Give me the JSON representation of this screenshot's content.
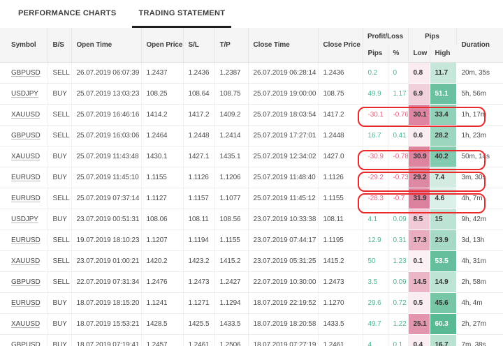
{
  "tabs": [
    {
      "id": "performance-charts",
      "label": "PERFORMANCE CHARTS",
      "active": false
    },
    {
      "id": "trading-statement",
      "label": "TRADING STATEMENT",
      "active": true
    }
  ],
  "table": {
    "columns": {
      "symbol": "Symbol",
      "side": "B/S",
      "open_time": "Open Time",
      "open_price": "Open Price",
      "sl": "S/L",
      "tp": "T/P",
      "close_time": "Close Time",
      "close_price": "Close Price",
      "duration": "Duration"
    },
    "group_headers": {
      "profit_loss": "Profit/Loss",
      "pips": "Pips"
    },
    "sub_headers": {
      "pips": "Pips",
      "pct": "%",
      "low": "Low",
      "high": "High"
    },
    "colors": {
      "profit_text": "#4bb795",
      "loss_text": "#e2647f",
      "annotation": "#ea2a2a",
      "header_bg": "#f5f5f5",
      "active_tab_underline": "#1f1f1f"
    },
    "heatmap": {
      "low_base": "#d0557a",
      "high_base": "#2fa878",
      "low_max": 31.9,
      "high_max": 60.3
    },
    "rows": [
      {
        "symbol": "GBPUSD",
        "side": "SELL",
        "open_time": "26.07.2019 06:07:39",
        "open_price": "1.2437",
        "sl": "1.2436",
        "tp": "1.2387",
        "close_time": "26.07.2019 06:28:14",
        "close_price": "1.2436",
        "pl_pips": "0.2",
        "pl_pct": "0",
        "low": "0.8",
        "high": "11.7",
        "duration": "20m, 35s",
        "annotated": false
      },
      {
        "symbol": "USDJPY",
        "side": "BUY",
        "open_time": "25.07.2019 13:03:23",
        "open_price": "108.25",
        "sl": "108.64",
        "tp": "108.75",
        "close_time": "25.07.2019 19:00:00",
        "close_price": "108.75",
        "pl_pips": "49.9",
        "pl_pct": "1.17",
        "low": "6.9",
        "high": "51.1",
        "duration": "5h, 56m",
        "annotated": false
      },
      {
        "symbol": "XAUUSD",
        "side": "SELL",
        "open_time": "25.07.2019 16:46:16",
        "open_price": "1414.2",
        "sl": "1417.2",
        "tp": "1409.2",
        "close_time": "25.07.2019 18:03:54",
        "close_price": "1417.2",
        "pl_pips": "-30.1",
        "pl_pct": "-0.76",
        "low": "30.1",
        "high": "33.4",
        "duration": "1h, 17m",
        "annotated": true
      },
      {
        "symbol": "GBPUSD",
        "side": "SELL",
        "open_time": "25.07.2019 16:03:06",
        "open_price": "1.2464",
        "sl": "1.2448",
        "tp": "1.2414",
        "close_time": "25.07.2019 17:27:01",
        "close_price": "1.2448",
        "pl_pips": "16.7",
        "pl_pct": "0.41",
        "low": "0.6",
        "high": "28.2",
        "duration": "1h, 23m",
        "annotated": false
      },
      {
        "symbol": "XAUUSD",
        "side": "BUY",
        "open_time": "25.07.2019 11:43:48",
        "open_price": "1430.1",
        "sl": "1427.1",
        "tp": "1435.1",
        "close_time": "25.07.2019 12:34:02",
        "close_price": "1427.0",
        "pl_pips": "-30.9",
        "pl_pct": "-0.78",
        "low": "30.9",
        "high": "40.2",
        "duration": "50m, 14s",
        "annotated": true
      },
      {
        "symbol": "EURUSD",
        "side": "BUY",
        "open_time": "25.07.2019 11:45:10",
        "open_price": "1.1155",
        "sl": "1.1126",
        "tp": "1.1206",
        "close_time": "25.07.2019 11:48:40",
        "close_price": "1.1126",
        "pl_pips": "-29.2",
        "pl_pct": "-0.73",
        "low": "29.2",
        "high": "7.4",
        "duration": "3m, 30s",
        "annotated": true
      },
      {
        "symbol": "EURUSD",
        "side": "SELL",
        "open_time": "25.07.2019 07:37:14",
        "open_price": "1.1127",
        "sl": "1.1157",
        "tp": "1.1077",
        "close_time": "25.07.2019 11:45:12",
        "close_price": "1.1155",
        "pl_pips": "-28.3",
        "pl_pct": "-0.7",
        "low": "31.9",
        "high": "4.6",
        "duration": "4h, 7m",
        "annotated": true
      },
      {
        "symbol": "USDJPY",
        "side": "BUY",
        "open_time": "23.07.2019 00:51:31",
        "open_price": "108.06",
        "sl": "108.11",
        "tp": "108.56",
        "close_time": "23.07.2019 10:33:38",
        "close_price": "108.11",
        "pl_pips": "4.1",
        "pl_pct": "0.09",
        "low": "8.5",
        "high": "15",
        "duration": "9h, 42m",
        "annotated": false
      },
      {
        "symbol": "EURUSD",
        "side": "SELL",
        "open_time": "19.07.2019 18:10:23",
        "open_price": "1.1207",
        "sl": "1.1194",
        "tp": "1.1155",
        "close_time": "23.07.2019 07:44:17",
        "close_price": "1.1195",
        "pl_pips": "12.9",
        "pl_pct": "0.31",
        "low": "17.3",
        "high": "23.9",
        "duration": "3d, 13h",
        "annotated": false
      },
      {
        "symbol": "XAUUSD",
        "side": "SELL",
        "open_time": "23.07.2019 01:00:21",
        "open_price": "1420.2",
        "sl": "1423.2",
        "tp": "1415.2",
        "close_time": "23.07.2019 05:31:25",
        "close_price": "1415.2",
        "pl_pips": "50",
        "pl_pct": "1.23",
        "low": "0.1",
        "high": "53.5",
        "duration": "4h, 31m",
        "annotated": false
      },
      {
        "symbol": "GBPUSD",
        "side": "SELL",
        "open_time": "22.07.2019 07:31:34",
        "open_price": "1.2476",
        "sl": "1.2473",
        "tp": "1.2427",
        "close_time": "22.07.2019 10:30:00",
        "close_price": "1.2473",
        "pl_pips": "3.5",
        "pl_pct": "0.09",
        "low": "14.5",
        "high": "14.9",
        "duration": "2h, 58m",
        "annotated": false
      },
      {
        "symbol": "EURUSD",
        "side": "BUY",
        "open_time": "18.07.2019 18:15:20",
        "open_price": "1.1241",
        "sl": "1.1271",
        "tp": "1.1294",
        "close_time": "18.07.2019 22:19:52",
        "close_price": "1.1270",
        "pl_pips": "29.6",
        "pl_pct": "0.72",
        "low": "0.5",
        "high": "45.6",
        "duration": "4h, 4m",
        "annotated": false
      },
      {
        "symbol": "XAUUSD",
        "side": "BUY",
        "open_time": "18.07.2019 15:53:21",
        "open_price": "1428.5",
        "sl": "1425.5",
        "tp": "1433.5",
        "close_time": "18.07.2019 18:20:58",
        "close_price": "1433.5",
        "pl_pips": "49.7",
        "pl_pct": "1.22",
        "low": "25.1",
        "high": "60.3",
        "duration": "2h, 27m",
        "annotated": false
      },
      {
        "symbol": "GBPUSD",
        "side": "BUY",
        "open_time": "18.07.2019 07:19:41",
        "open_price": "1.2457",
        "sl": "1.2461",
        "tp": "1.2506",
        "close_time": "18.07.2019 07:27:19",
        "close_price": "1.2461",
        "pl_pips": "4",
        "pl_pct": "0.1",
        "low": "0.4",
        "high": "16.7",
        "duration": "7m, 38s",
        "annotated": false
      }
    ]
  }
}
